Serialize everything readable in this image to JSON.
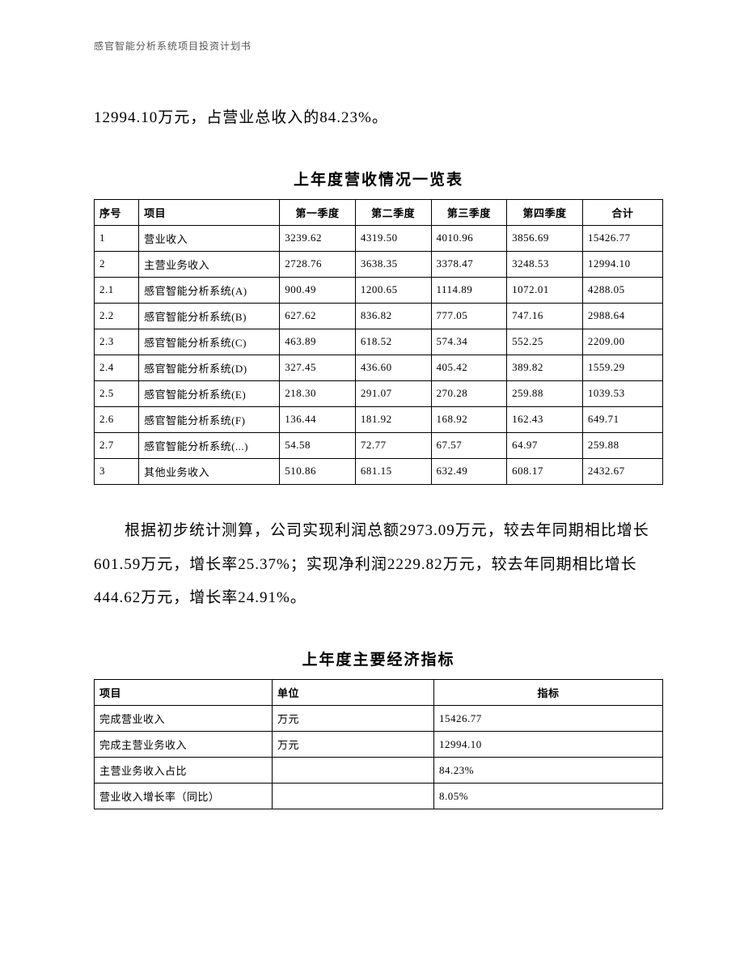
{
  "header": {
    "text": "感官智能分析系统项目投资计划书"
  },
  "intro": {
    "text": "12994.10万元，占营业总收入的84.23%。"
  },
  "table1": {
    "title": "上年度营收情况一览表",
    "columns": [
      "序号",
      "项目",
      "第一季度",
      "第二季度",
      "第三季度",
      "第四季度",
      "合计"
    ],
    "rows": [
      [
        "1",
        "营业收入",
        "3239.62",
        "4319.50",
        "4010.96",
        "3856.69",
        "15426.77"
      ],
      [
        "2",
        "主营业务收入",
        "2728.76",
        "3638.35",
        "3378.47",
        "3248.53",
        "12994.10"
      ],
      [
        "2.1",
        "感官智能分析系统(A)",
        "900.49",
        "1200.65",
        "1114.89",
        "1072.01",
        "4288.05"
      ],
      [
        "2.2",
        "感官智能分析系统(B)",
        "627.62",
        "836.82",
        "777.05",
        "747.16",
        "2988.64"
      ],
      [
        "2.3",
        "感官智能分析系统(C)",
        "463.89",
        "618.52",
        "574.34",
        "552.25",
        "2209.00"
      ],
      [
        "2.4",
        "感官智能分析系统(D)",
        "327.45",
        "436.60",
        "405.42",
        "389.82",
        "1559.29"
      ],
      [
        "2.5",
        "感官智能分析系统(E)",
        "218.30",
        "291.07",
        "270.28",
        "259.88",
        "1039.53"
      ],
      [
        "2.6",
        "感官智能分析系统(F)",
        "136.44",
        "181.92",
        "168.92",
        "162.43",
        "649.71"
      ],
      [
        "2.7",
        "感官智能分析系统(...)",
        "54.58",
        "72.77",
        "67.57",
        "64.97",
        "259.88"
      ],
      [
        "3",
        "其他业务收入",
        "510.86",
        "681.15",
        "632.49",
        "608.17",
        "2432.67"
      ]
    ]
  },
  "mid_paragraph": {
    "text": "根据初步统计测算，公司实现利润总额2973.09万元，较去年同期相比增长601.59万元，增长率25.37%；实现净利润2229.82万元，较去年同期相比增长444.62万元，增长率24.91%。"
  },
  "table2": {
    "title": "上年度主要经济指标",
    "columns": [
      "项目",
      "单位",
      "指标"
    ],
    "rows": [
      [
        "完成营业收入",
        "万元",
        "15426.77"
      ],
      [
        "完成主营业务收入",
        "万元",
        "12994.10"
      ],
      [
        "主营业务收入占比",
        "",
        "84.23%"
      ],
      [
        "营业收入增长率（同比）",
        "",
        "8.05%"
      ]
    ]
  }
}
